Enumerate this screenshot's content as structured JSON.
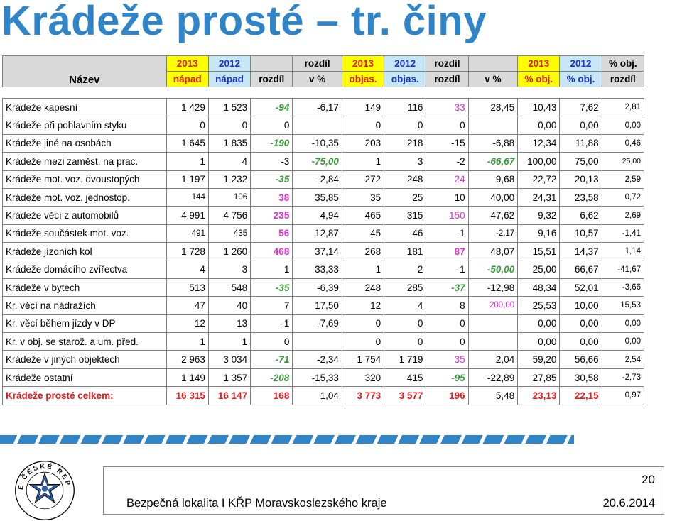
{
  "title": "Krádeže prosté – tr. činy",
  "header": {
    "name_label": "Název",
    "cols": [
      {
        "top": "2013",
        "bottom": "nápad",
        "style": "y13",
        "bg": "bgy"
      },
      {
        "top": "2012",
        "bottom": "nápad",
        "style": "y12",
        "bg": "bgc"
      },
      {
        "top": "",
        "bottom": "rozdíl",
        "style": "blk",
        "bg": ""
      },
      {
        "top": "rozdíl",
        "bottom": "v %",
        "style": "blk",
        "bg": ""
      },
      {
        "top": "2013",
        "bottom": "objas.",
        "style": "y13",
        "bg": "bgy"
      },
      {
        "top": "2012",
        "bottom": "objas.",
        "style": "y12",
        "bg": "bgc"
      },
      {
        "top": "rozdíl",
        "bottom": "rozdíl",
        "style": "blk",
        "bg": ""
      },
      {
        "top": "",
        "bottom": "v %",
        "style": "blk",
        "bg": ""
      },
      {
        "top": "2013",
        "bottom": "% obj.",
        "style": "y13",
        "bg": "bgy"
      },
      {
        "top": "2012",
        "bottom": "% obj.",
        "style": "y12",
        "bg": "bgc"
      },
      {
        "top": "% obj.",
        "bottom": "rozdíl",
        "style": "blk",
        "bg": ""
      }
    ]
  },
  "rows": [
    {
      "name": "Krádeže kapesní",
      "values": [
        "1 429",
        "1 523",
        "-94",
        "-6,17",
        "149",
        "116",
        "33",
        "28,45",
        "10,43",
        "7,62",
        "2,81"
      ],
      "styles": [
        "",
        "",
        "green",
        "",
        "",
        "",
        "magenta",
        "",
        "",
        "",
        "small"
      ]
    },
    {
      "name": "Krádeže při pohlavním styku",
      "values": [
        "0",
        "0",
        "0",
        "",
        "0",
        "0",
        "0",
        "",
        "0,00",
        "0,00",
        "0,00"
      ],
      "styles": [
        "",
        "",
        "",
        "",
        "",
        "",
        "",
        "",
        "",
        "",
        "small"
      ]
    },
    {
      "name": "Krádeže jiné na osobách",
      "values": [
        "1 645",
        "1 835",
        "-190",
        "-10,35",
        "203",
        "218",
        "-15",
        "-6,88",
        "12,34",
        "11,88",
        "0,46"
      ],
      "styles": [
        "",
        "",
        "green",
        "",
        "",
        "",
        "",
        "",
        "",
        "",
        "small"
      ]
    },
    {
      "name": "Krádeže mezi zaměst. na prac.",
      "values": [
        "1",
        "4",
        "-3",
        "-75,00",
        "1",
        "3",
        "-2",
        "-66,67",
        "100,00",
        "75,00",
        "25,00"
      ],
      "styles": [
        "",
        "",
        "",
        "greenb",
        "",
        "",
        "",
        "greenb",
        "",
        "",
        "smaller"
      ]
    },
    {
      "name": "Krádeže mot. voz. dvoustopých",
      "values": [
        "1 197",
        "1 232",
        "-35",
        "-2,84",
        "272",
        "248",
        "24",
        "9,68",
        "22,72",
        "20,13",
        "2,59"
      ],
      "styles": [
        "",
        "",
        "green",
        "",
        "",
        "",
        "magenta",
        "",
        "",
        "",
        "small"
      ]
    },
    {
      "name": "Krádeže mot. voz. jednostop.",
      "values": [
        "144",
        "106",
        "38",
        "35,85",
        "35",
        "25",
        "10",
        "40,00",
        "24,31",
        "23,58",
        "0,72"
      ],
      "styles": [
        "small",
        "small",
        "magb",
        "",
        "",
        "",
        "",
        "",
        "",
        "",
        "small"
      ]
    },
    {
      "name": "Krádeže věcí z automobilů",
      "values": [
        "4 991",
        "4 756",
        "235",
        "4,94",
        "465",
        "315",
        "150",
        "47,62",
        "9,32",
        "6,62",
        "2,69"
      ],
      "styles": [
        "",
        "",
        "magb",
        "",
        "",
        "",
        "magenta",
        "",
        "",
        "",
        "small"
      ]
    },
    {
      "name": "Krádeže součástek mot. voz.",
      "values": [
        "491",
        "435",
        "56",
        "12,87",
        "45",
        "46",
        "-1",
        "-2,17",
        "9,16",
        "10,57",
        "-1,41"
      ],
      "styles": [
        "small",
        "small",
        "magb",
        "",
        "",
        "",
        "",
        "small",
        "",
        "",
        "small"
      ]
    },
    {
      "name": "Krádeže jízdních kol",
      "values": [
        "1 728",
        "1 260",
        "468",
        "37,14",
        "268",
        "181",
        "87",
        "48,07",
        "15,51",
        "14,37",
        "1,14"
      ],
      "styles": [
        "",
        "",
        "magb",
        "",
        "",
        "",
        "magb",
        "",
        "",
        "",
        "small"
      ]
    },
    {
      "name": "Krádeže domácího zvířectva",
      "values": [
        "4",
        "3",
        "1",
        "33,33",
        "1",
        "2",
        "-1",
        "-50,00",
        "25,00",
        "66,67",
        "-41,67"
      ],
      "styles": [
        "",
        "",
        "",
        "",
        "",
        "",
        "",
        "greenb",
        "",
        "",
        "small"
      ]
    },
    {
      "name": "Krádeže v bytech",
      "values": [
        "513",
        "548",
        "-35",
        "-6,39",
        "248",
        "285",
        "-37",
        "-12,98",
        "48,34",
        "52,01",
        "-3,66"
      ],
      "styles": [
        "",
        "",
        "green",
        "",
        "",
        "",
        "greenb",
        "",
        "",
        "",
        "small"
      ]
    },
    {
      "name": "Kr. věcí na nádražích",
      "values": [
        "47",
        "40",
        "7",
        "17,50",
        "12",
        "4",
        "8",
        "200,00",
        "25,53",
        "10,00",
        "15,53"
      ],
      "styles": [
        "",
        "",
        "",
        "",
        "",
        "",
        "",
        "magenta small",
        "",
        "",
        "small"
      ]
    },
    {
      "name": "Kr. věcí během jízdy v DP",
      "values": [
        "12",
        "13",
        "-1",
        "-7,69",
        "0",
        "0",
        "0",
        "",
        "0,00",
        "0,00",
        "0,00"
      ],
      "styles": [
        "",
        "",
        "",
        "",
        "",
        "",
        "",
        "",
        "",
        "",
        "small"
      ]
    },
    {
      "name": "Kr. v obj. se starož. a um. před.",
      "values": [
        "1",
        "1",
        "0",
        "",
        "0",
        "0",
        "0",
        "",
        "0,00",
        "0,00",
        "0,00"
      ],
      "styles": [
        "",
        "",
        "",
        "",
        "",
        "",
        "",
        "",
        "",
        "",
        "small"
      ]
    },
    {
      "name": "Krádeže v jiných objektech",
      "values": [
        "2 963",
        "3 034",
        "-71",
        "-2,34",
        "1 754",
        "1 719",
        "35",
        "2,04",
        "59,20",
        "56,66",
        "2,54"
      ],
      "styles": [
        "",
        "",
        "green",
        "",
        "",
        "",
        "magenta",
        "",
        "",
        "",
        "small"
      ]
    },
    {
      "name": "Krádeže ostatní",
      "values": [
        "1 149",
        "1 357",
        "-208",
        "-15,33",
        "320",
        "415",
        "-95",
        "-22,89",
        "27,85",
        "30,58",
        "-2,73"
      ],
      "styles": [
        "",
        "",
        "green",
        "",
        "",
        "",
        "greenb",
        "",
        "",
        "",
        "small"
      ]
    }
  ],
  "total": {
    "name": "Krádeže prosté celkem:",
    "values": [
      "16 315",
      "16 147",
      "168",
      "1,04",
      "3 773",
      "3 577",
      "196",
      "5,48",
      "23,13",
      "22,15",
      "0,97"
    ],
    "styles": [
      "",
      "",
      "magb",
      "plain",
      "",
      "",
      "magenta",
      "plain",
      "",
      "",
      "plain small"
    ]
  },
  "footer": {
    "page_number": "20",
    "text": "Bezpečná lokalita I KŘP Moravskoslezského kraje",
    "date": "20.6.2014"
  },
  "logo": {
    "text": "POLICIE ČESKÉ REPUBLIKY",
    "icon": "police-star-logo"
  }
}
